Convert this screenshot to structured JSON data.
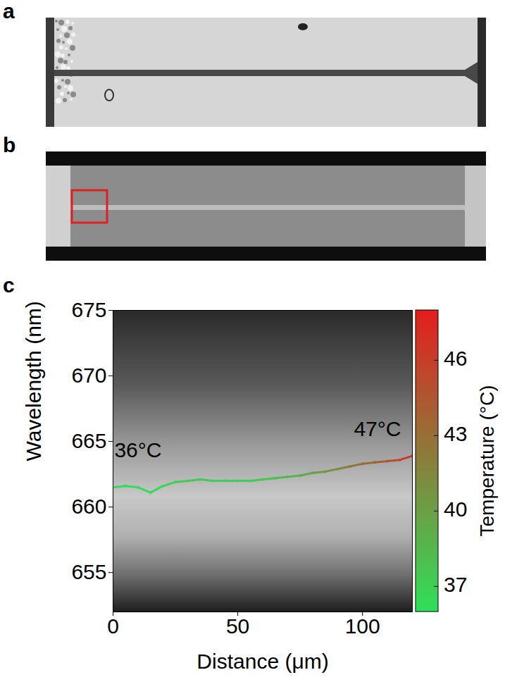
{
  "panel_labels": [
    "a",
    "b",
    "c"
  ],
  "chart_data": {
    "type": "line",
    "x_label": "Distance (μm)",
    "y_label": "Wavelength (nm)",
    "x": [
      0,
      5,
      10,
      15,
      20,
      25,
      30,
      35,
      40,
      45,
      50,
      55,
      60,
      65,
      70,
      75,
      80,
      85,
      90,
      95,
      100,
      105,
      110,
      115,
      120
    ],
    "values": [
      661.5,
      661.6,
      661.5,
      661.1,
      661.6,
      661.9,
      662.0,
      662.1,
      662.0,
      662.0,
      662.0,
      662.0,
      662.1,
      662.2,
      662.3,
      662.4,
      662.6,
      662.7,
      662.9,
      663.1,
      663.3,
      663.4,
      663.5,
      663.6,
      663.9
    ],
    "temperature": [
      36,
      36.4,
      36,
      36,
      36.4,
      37,
      37.2,
      37.5,
      37.2,
      37.2,
      37.2,
      37.2,
      37.5,
      38,
      38.4,
      38.8,
      39.8,
      40.3,
      41.2,
      42.1,
      43,
      43.6,
      44.5,
      45.5,
      47
    ],
    "xlim": [
      0,
      120
    ],
    "xticks": [
      0,
      50,
      100
    ],
    "ylim": [
      652,
      675
    ],
    "yticks": [
      655,
      660,
      665,
      670,
      675
    ],
    "colorbar": {
      "label": "Temperature (°C)",
      "range": [
        36,
        48
      ],
      "ticks": [
        37,
        40,
        43,
        46
      ]
    },
    "annotations": [
      {
        "text": "36°C",
        "x": 10,
        "y": 664.3
      },
      {
        "text": "47°C",
        "x": 106,
        "y": 665.9
      }
    ]
  }
}
